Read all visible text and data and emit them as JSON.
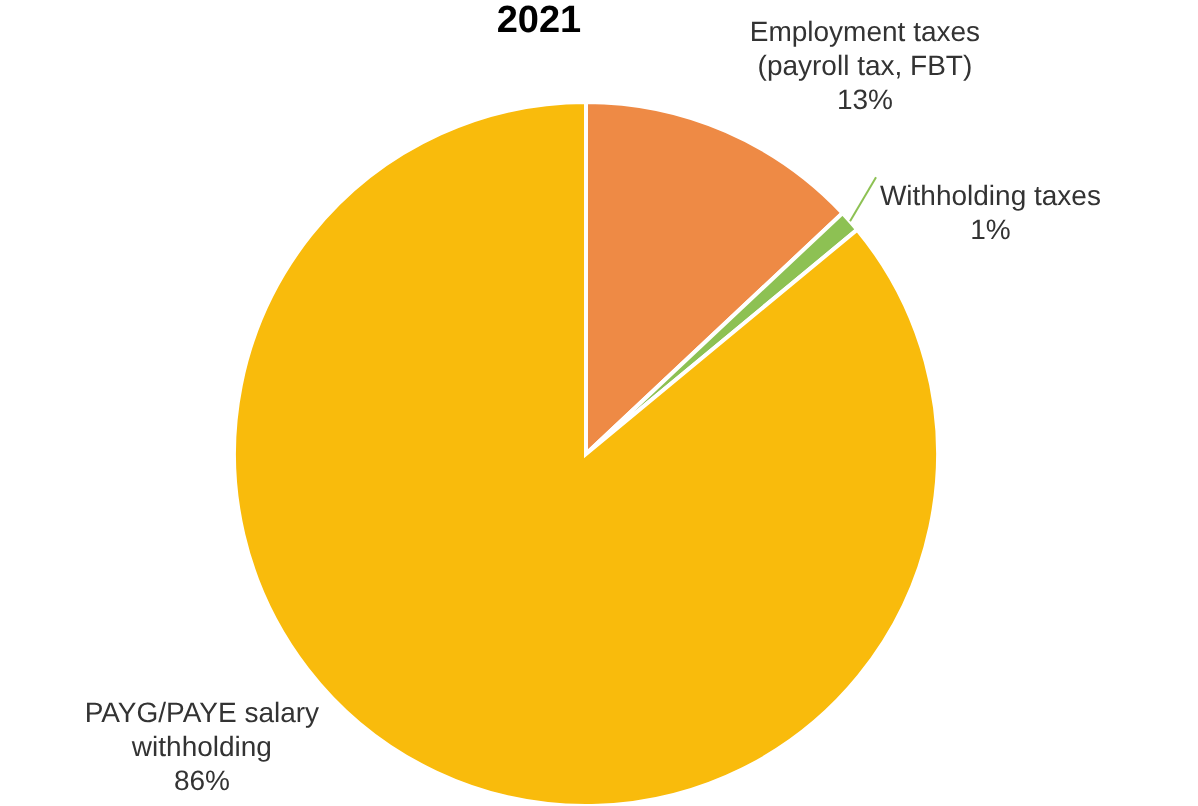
{
  "chart_data": {
    "type": "pie",
    "title": "2021",
    "categories": [
      "Employment taxes (payroll tax, FBT)",
      "Withholding taxes",
      "PAYG/PAYE salary withholding"
    ],
    "values": [
      13,
      1,
      86
    ],
    "colors": [
      "#ee8a45",
      "#8dc153",
      "#f9bb0c"
    ],
    "value_labels": [
      "13%",
      "1%",
      "86%"
    ]
  }
}
